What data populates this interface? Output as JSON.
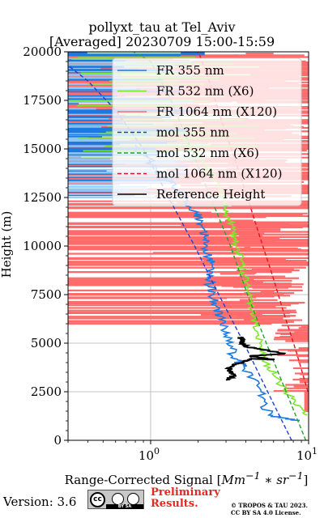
{
  "title_line1": "pollyxt_tau at Tel_Aviv",
  "title_line2": "[Averaged] 20230709 15:00-15:59",
  "footer": {
    "version": "Version: 3.6",
    "cc_label": "BY SA",
    "preliminary_line1": "Preliminary",
    "preliminary_line2": "Results.",
    "copyright_line1": "© TROPOS & TAU 2023.",
    "copyright_line2": "CC BY SA 4.0 License."
  },
  "chart_data": {
    "type": "line",
    "title": "pollyxt_tau at Tel_Aviv [Averaged] 20230709 15:00-15:59",
    "xlabel": "Range-Corrected Signal [Mm^-1 * sr^-1]",
    "ylabel": "Height (m)",
    "xscale": "log",
    "xlim": [
      0.3,
      10
    ],
    "ylim": [
      0,
      20000
    ],
    "xticks": [
      1,
      10
    ],
    "xtick_labels": [
      "10^0",
      "10^1"
    ],
    "yticks": [
      0,
      2500,
      5000,
      7500,
      10000,
      12500,
      15000,
      17500,
      20000
    ],
    "ytick_labels": [
      "0",
      "2500",
      "5000",
      "7500",
      "10000",
      "12500",
      "15000",
      "17500",
      "20000"
    ],
    "grid": true,
    "legend_position": "top-right",
    "legend": [
      "FR 355 nm",
      "FR 532 nm (X6)",
      "FR 1064 nm (X120)",
      "mol 355 nm",
      "mol 532 nm (X6)",
      "mol 1064 nm (X120)",
      "Reference Height"
    ],
    "colors": {
      "fr355": "#1a7ae0",
      "fr355_light": "#8ec5f7",
      "fr532": "#7ee62a",
      "fr532_light": "#c6f59a",
      "fr1064": "#ff6b6b",
      "mol355": "#1f3fd1",
      "mol532": "#23a32a",
      "mol1064": "#e3161a",
      "ref": "#000000"
    },
    "series": [
      {
        "name": "FR 355 nm",
        "x": [
          8.6,
          5.6,
          5.0,
          3.9,
          3.3,
          3.2,
          2.8,
          2.6,
          2.5,
          2.35,
          2.45,
          2.3,
          2.2,
          2.1,
          1.9,
          1.6,
          1.2,
          0.8
        ],
        "y": [
          1000,
          1300,
          2500,
          3800,
          4300,
          5200,
          6000,
          6900,
          7500,
          8200,
          9000,
          9800,
          10500,
          11200,
          11800,
          12600,
          13600,
          15200
        ]
      },
      {
        "name": "FR 532 nm (X6)",
        "x": [
          9.8,
          8.2,
          6.5,
          5.4,
          4.9,
          4.6,
          4.3,
          4.1,
          3.9,
          3.7,
          3.5,
          3.3,
          3.1,
          2.9,
          2.7,
          2.2,
          1.6
        ],
        "y": [
          1300,
          2000,
          3000,
          4000,
          5000,
          6000,
          7000,
          7700,
          8500,
          9300,
          10000,
          10700,
          11500,
          12200,
          13000,
          14200,
          15500
        ]
      },
      {
        "name": "mol 355 nm",
        "x": [
          7.8,
          5.5,
          3.9,
          2.7,
          1.9,
          1.3,
          0.9,
          0.6,
          0.4,
          0.3
        ],
        "y": [
          0,
          2500,
          5000,
          7500,
          10000,
          12500,
          15000,
          17000,
          18500,
          19300
        ]
      },
      {
        "name": "mol 532 nm (X6)",
        "x": [
          9.6,
          7.2,
          5.4,
          4.1,
          3.2,
          2.4,
          1.8,
          1.35,
          1.0,
          0.78
        ],
        "y": [
          0,
          2500,
          5000,
          7500,
          10000,
          12500,
          15000,
          17500,
          19500,
          20000
        ]
      },
      {
        "name": "mol 1064 nm (X120)",
        "x": [
          9.9,
          8.4,
          7.0,
          5.9,
          4.9,
          4.1,
          3.4,
          2.8,
          2.35,
          2.05,
          1.97
        ],
        "y": [
          2500,
          4500,
          6500,
          8500,
          10500,
          12500,
          14500,
          16500,
          18500,
          19800,
          20000
        ]
      },
      {
        "name": "Reference Height",
        "x": [
          3.0,
          3.4,
          3.1,
          3.3,
          3.6,
          4.4,
          6.0,
          4.3,
          7.0,
          5.0,
          4.1,
          3.8,
          3.9,
          3.7
        ],
        "y": [
          3100,
          3350,
          3600,
          3850,
          3950,
          4200,
          4150,
          4350,
          4450,
          4700,
          4800,
          5000,
          5150,
          5300
        ]
      }
    ]
  }
}
